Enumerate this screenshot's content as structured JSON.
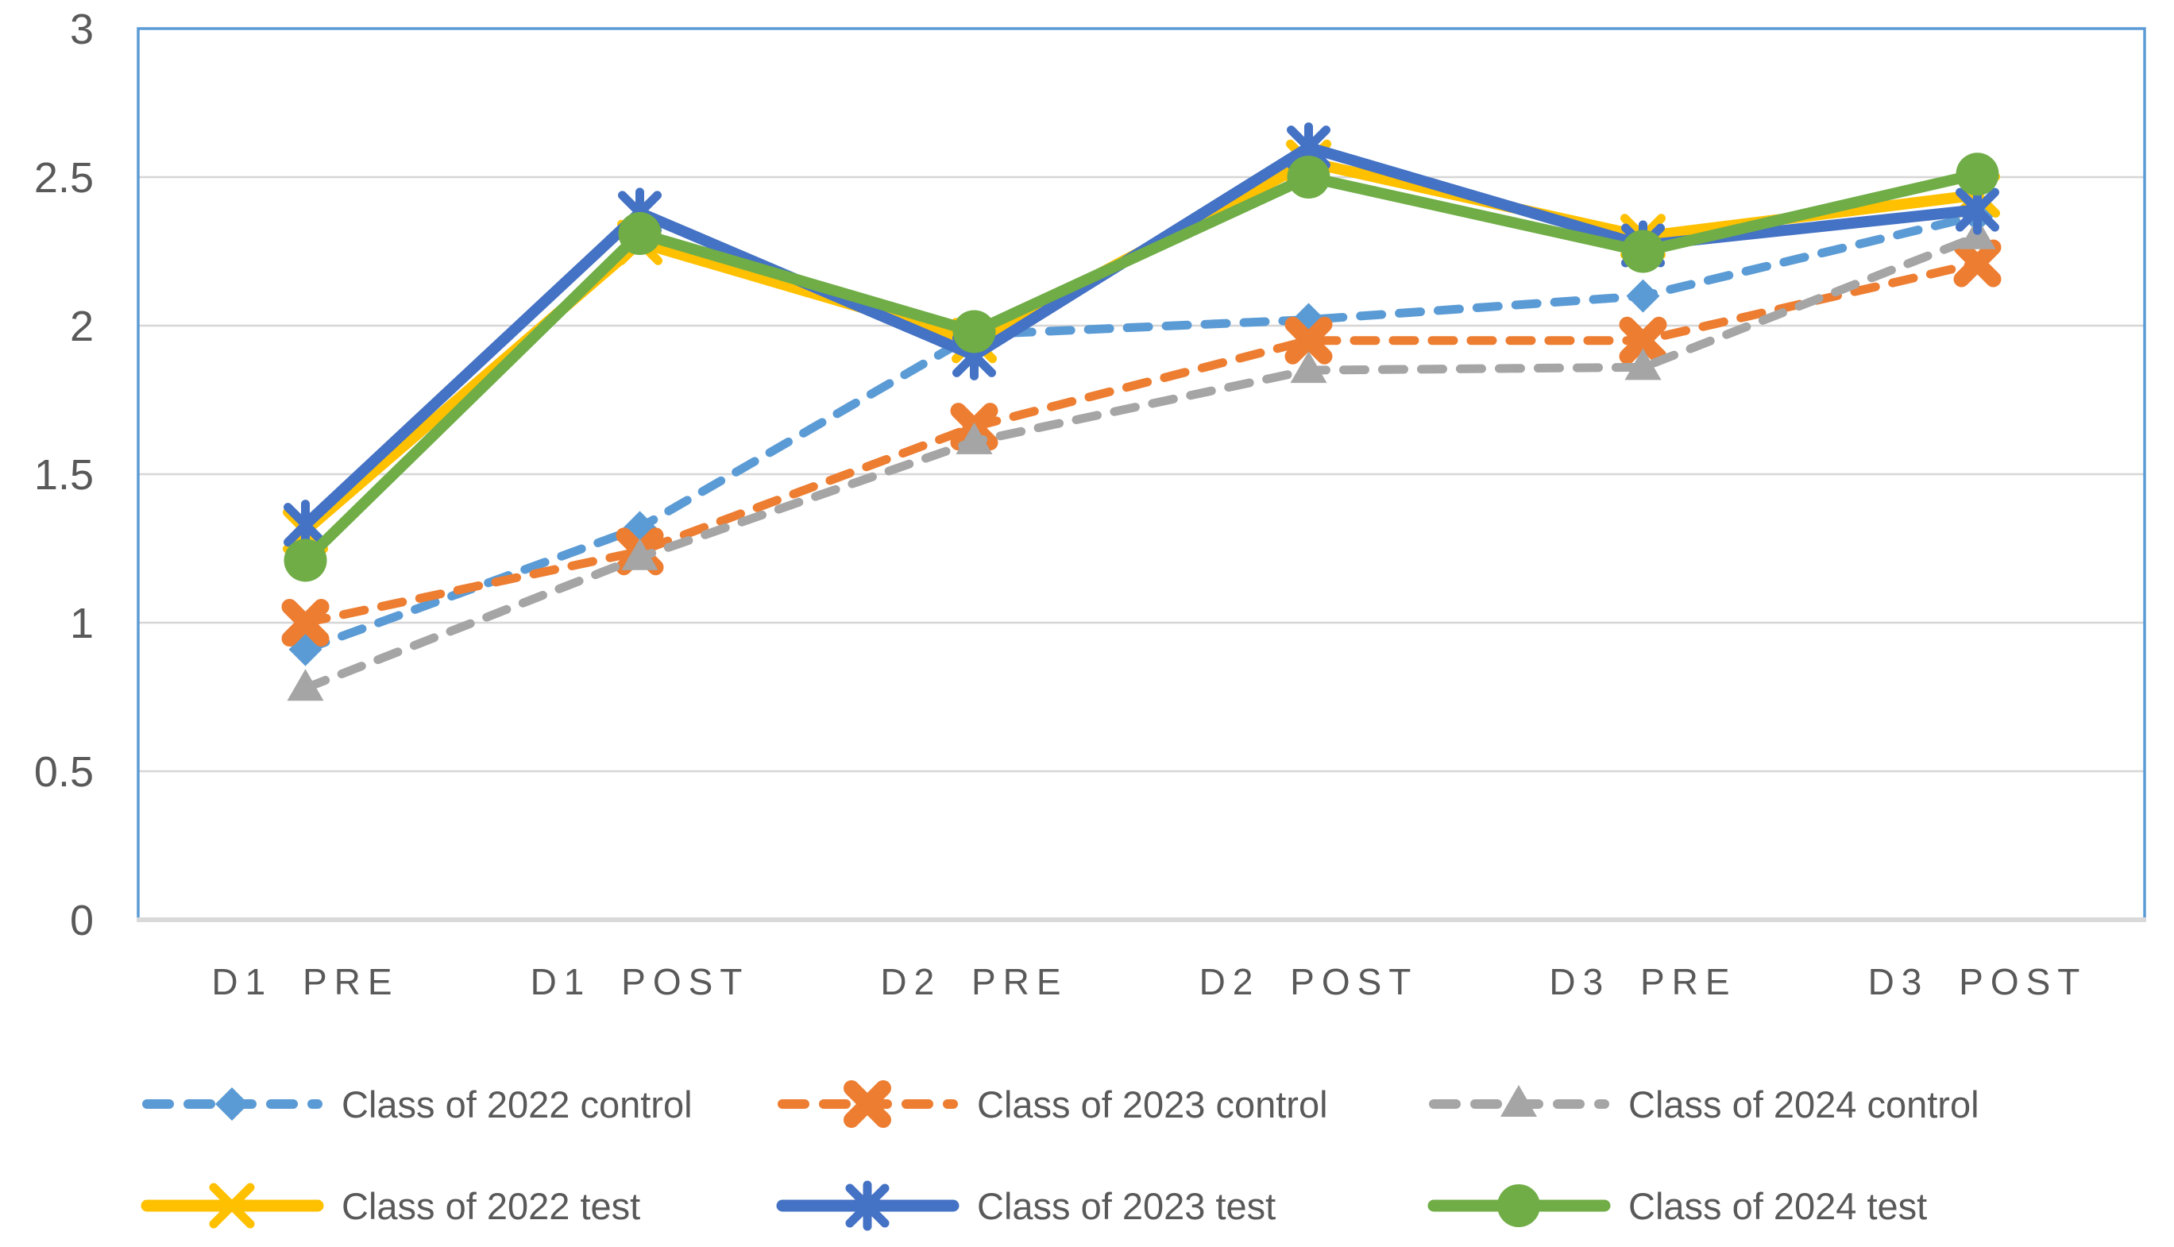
{
  "chart_data": {
    "type": "line",
    "title": "",
    "xlabel": "",
    "ylabel": "",
    "categories": [
      "D1 PRE",
      "D1 POST",
      "D2 PRE",
      "D2 POST",
      "D3 PRE",
      "D3 POST"
    ],
    "series": [
      {
        "name": "Class of 2022 control",
        "color": "#5B9BD5",
        "style": "dashed",
        "marker": "diamond",
        "values": [
          0.91,
          1.32,
          1.97,
          2.02,
          2.1,
          2.37
        ]
      },
      {
        "name": "Class of 2023 control",
        "color": "#ED7D31",
        "style": "dashed",
        "marker": "x-thick",
        "values": [
          1.0,
          1.24,
          1.66,
          1.95,
          1.95,
          2.21
        ]
      },
      {
        "name": "Class of 2024 control",
        "color": "#A5A5A5",
        "style": "dashed",
        "marker": "triangle",
        "values": [
          0.78,
          1.22,
          1.61,
          1.85,
          1.86,
          2.3
        ]
      },
      {
        "name": "Class of 2022 test",
        "color": "#FFC000",
        "style": "solid",
        "marker": "x",
        "values": [
          1.31,
          2.28,
          1.95,
          2.55,
          2.3,
          2.44
        ]
      },
      {
        "name": "Class of 2023 test",
        "color": "#4472C4",
        "style": "solid",
        "marker": "asterisk",
        "values": [
          1.33,
          2.38,
          1.9,
          2.6,
          2.27,
          2.39
        ]
      },
      {
        "name": "Class of 2024 test",
        "color": "#70AD47",
        "style": "solid",
        "marker": "circle",
        "values": [
          1.21,
          2.31,
          1.98,
          2.5,
          2.25,
          2.51
        ]
      }
    ],
    "y_ticks": [
      0,
      0.5,
      1,
      1.5,
      2,
      2.5,
      3
    ],
    "y_tick_labels": [
      "0",
      "0.5",
      "1",
      "1.5",
      "2",
      "2.5",
      "3"
    ],
    "ylim": [
      0,
      3
    ],
    "grid": true,
    "legend_position": "bottom",
    "legend_rows": [
      [
        "Class of 2022 control",
        "Class of 2023 control",
        "Class of 2024 control"
      ],
      [
        "Class of 2022 test",
        "Class of 2023 test",
        "Class of 2024 test"
      ]
    ],
    "colors": {
      "plot_border": "#5B9BD5",
      "gridline": "#D6D6D6",
      "axis_line": "#D9D9D9",
      "tick_text": "#595959",
      "background": "#FFFFFF"
    }
  }
}
